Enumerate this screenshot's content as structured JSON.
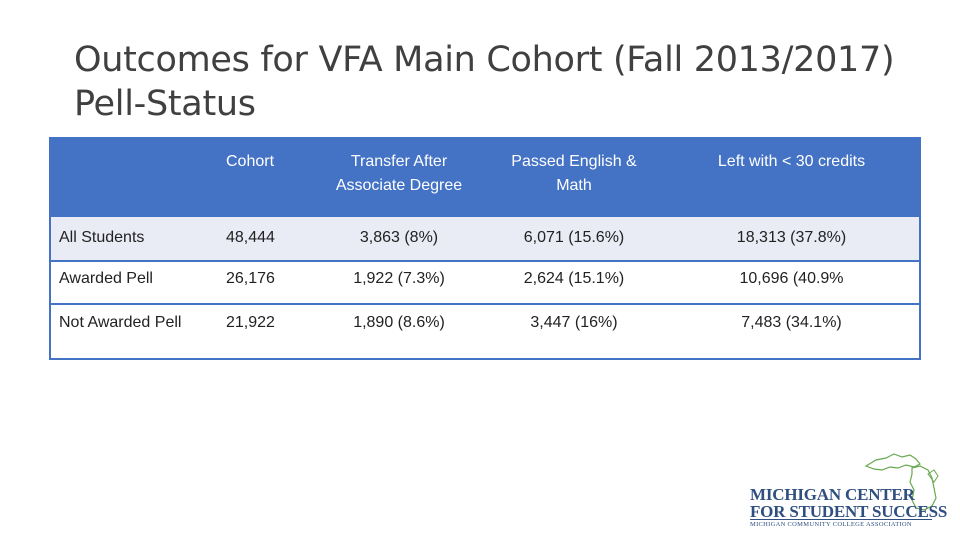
{
  "slide": {
    "title_line1": "Outcomes for VFA Main Cohort (Fall 2013/2017)",
    "title_line2": "Pell-Status"
  },
  "table": {
    "headers": [
      "",
      "Cohort",
      "Transfer After Associate Degree",
      "Passed English & Math",
      "Left with < 30 credits"
    ],
    "rows": [
      [
        "All Students",
        "48,444",
        "3,863   (8%)",
        "6,071 (15.6%)",
        "18,313   (37.8%)"
      ],
      [
        "Awarded Pell",
        "26,176",
        "1,922 (7.3%)",
        "2,624 (15.1%)",
        "10,696 (40.9%"
      ],
      [
        "Not Awarded Pell",
        "21,922",
        "1,890 (8.6%)",
        "3,447 (16%)",
        "7,483 (34.1%)"
      ]
    ]
  },
  "logo": {
    "line1": "MICHIGAN CENTER",
    "line2": "FOR STUDENT SUCCESS",
    "line3": "MICHIGAN COMMUNITY COLLEGE ASSOCIATION",
    "color": "#2f4f7f",
    "accent": "#6aa84f"
  },
  "colors": {
    "header_bg": "#4472c4",
    "row_alt_bg": "#e9ebf5",
    "title": "#404040"
  }
}
